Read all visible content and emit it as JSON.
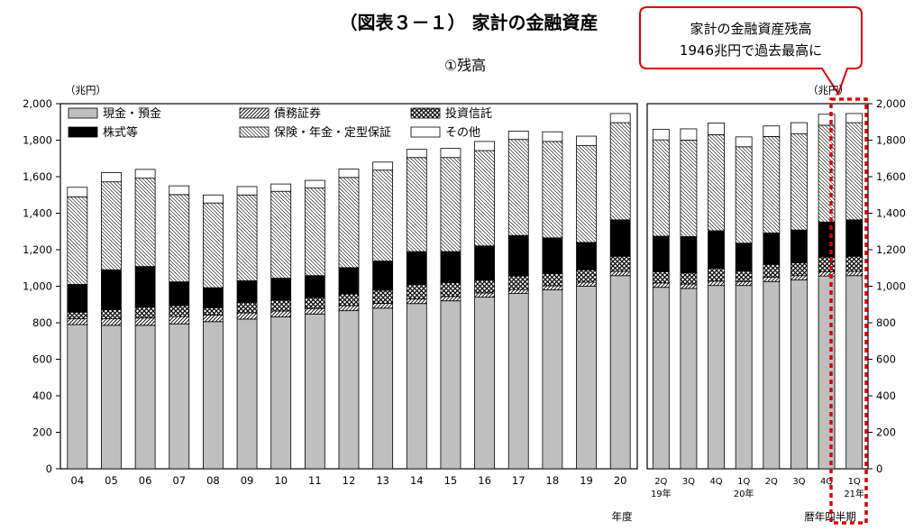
{
  "title": "（図表３－１） 家計の金融資産",
  "subtitle": "①残高",
  "callout": {
    "line1": "家計の金融資産残高",
    "line2": "1946兆円で過去最高に"
  },
  "colors": {
    "cash": "#bfbfbf",
    "debt": "#ffffff",
    "trust": "#ffffff",
    "stock": "#000000",
    "insurance": "#ffffff",
    "other": "#ffffff",
    "callout_border": "#e00000",
    "highlight_border": "#e00000"
  },
  "chart_data": {
    "type": "bar",
    "stacked": true,
    "unit_label": "（兆円）",
    "y_range": [
      0,
      2000
    ],
    "y_ticks": [
      "0",
      "200",
      "400",
      "600",
      "800",
      "1,000",
      "1,200",
      "1,400",
      "1,600",
      "1,800",
      "2,000"
    ],
    "right_y_ticks": [
      "0",
      "200",
      "400",
      "600",
      "800",
      "1,000",
      "1,200",
      "1,400",
      "1,600",
      "1,800",
      "2,000"
    ],
    "legend": [
      "現金・預金",
      "債務証券",
      "投資信託",
      "株式等",
      "保険・年金・定型保証",
      "その他"
    ],
    "left_panel": {
      "xlabel": "年度",
      "categories": [
        "04",
        "05",
        "06",
        "07",
        "08",
        "09",
        "10",
        "11",
        "12",
        "13",
        "14",
        "15",
        "16",
        "17",
        "18",
        "19",
        "20"
      ],
      "series": [
        {
          "name": "現金・預金",
          "values": [
            790,
            786,
            786,
            794,
            806,
            820,
            832,
            848,
            866,
            880,
            905,
            920,
            940,
            960,
            980,
            1000,
            1058
          ]
        },
        {
          "name": "債務証券",
          "values": [
            32,
            36,
            40,
            40,
            36,
            34,
            32,
            30,
            28,
            26,
            25,
            24,
            23,
            22,
            22,
            22,
            24
          ]
        },
        {
          "name": "投資信託",
          "values": [
            36,
            50,
            60,
            60,
            40,
            58,
            60,
            60,
            64,
            72,
            80,
            76,
            72,
            74,
            68,
            68,
            82
          ]
        },
        {
          "name": "株式等",
          "values": [
            152,
            218,
            222,
            130,
            110,
            118,
            120,
            120,
            144,
            160,
            180,
            170,
            186,
            222,
            195,
            150,
            200
          ]
        },
        {
          "name": "保険・年金・定型保証",
          "values": [
            480,
            482,
            484,
            478,
            464,
            470,
            476,
            480,
            494,
            498,
            515,
            515,
            522,
            526,
            528,
            530,
            532
          ]
        },
        {
          "name": "その他",
          "values": [
            52,
            50,
            48,
            48,
            44,
            46,
            40,
            42,
            46,
            44,
            45,
            50,
            50,
            46,
            53,
            52,
            50
          ]
        }
      ]
    },
    "right_panel": {
      "xlabel": "暦年四半期",
      "categories": [
        "2Q",
        "3Q",
        "4Q",
        "1Q",
        "2Q",
        "3Q",
        "4Q",
        "1Q"
      ],
      "year_labels": [
        {
          "index": 0,
          "text": "19年"
        },
        {
          "index": 3,
          "text": "20年"
        },
        {
          "index": 7,
          "text": "21年"
        }
      ],
      "highlight_index": 7,
      "series": [
        {
          "name": "現金・預金",
          "values": [
            994,
            988,
            1004,
            1004,
            1026,
            1034,
            1056,
            1058
          ]
        },
        {
          "name": "債務証券",
          "values": [
            24,
            24,
            24,
            22,
            24,
            24,
            24,
            24
          ]
        },
        {
          "name": "投資信託",
          "values": [
            62,
            62,
            70,
            58,
            70,
            70,
            80,
            82
          ]
        },
        {
          "name": "株式等",
          "values": [
            194,
            198,
            206,
            152,
            172,
            180,
            192,
            200
          ]
        },
        {
          "name": "保険・年金・定型保証",
          "values": [
            528,
            528,
            526,
            528,
            528,
            528,
            530,
            532
          ]
        },
        {
          "name": "その他",
          "values": [
            58,
            62,
            64,
            54,
            58,
            60,
            60,
            50
          ]
        }
      ]
    }
  }
}
